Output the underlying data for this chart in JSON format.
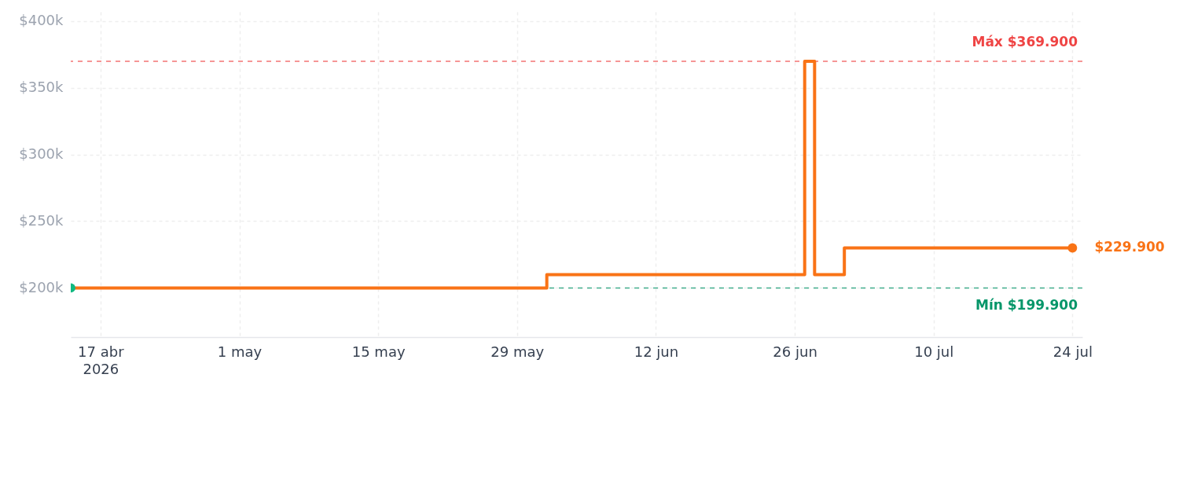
{
  "chart_data": {
    "type": "step",
    "x": [
      "2026-04-14",
      "2026-06-01",
      "2026-06-27",
      "2026-06-28",
      "2026-07-01",
      "2026-07-24"
    ],
    "series": [
      {
        "color": "#f97316",
        "values": [
          199900,
          209900,
          369900,
          209900,
          229900,
          229900
        ]
      },
      {
        "type": "scatter",
        "color": "#10b981",
        "x": [
          "2026-04-14"
        ],
        "values": [
          199900
        ],
        "marker": "circle"
      },
      {
        "type": "scatter",
        "color": "#f97316",
        "x": [
          "2026-07-24"
        ],
        "values": [
          229900
        ],
        "marker": "circle",
        "value_labels": [
          "$229.900"
        ]
      }
    ],
    "xlim": [
      "2026-04-14",
      "2026-07-25"
    ],
    "xticks": [
      {
        "value": "2026-04-17",
        "label": "17 abr\n2026"
      },
      {
        "value": "2026-05-01",
        "label": "1 may"
      },
      {
        "value": "2026-05-15",
        "label": "15 may"
      },
      {
        "value": "2026-05-29",
        "label": "29 may"
      },
      {
        "value": "2026-06-12",
        "label": "12 jun"
      },
      {
        "value": "2026-06-26",
        "label": "26 jun"
      },
      {
        "value": "2026-07-10",
        "label": "10 jul"
      },
      {
        "value": "2026-07-24",
        "label": "24 jul"
      }
    ],
    "ylim": [
      163000,
      407000
    ],
    "yticks": [
      {
        "value": 200000,
        "label": "$200k"
      },
      {
        "value": 250000,
        "label": "$250k"
      },
      {
        "value": 300000,
        "label": "$300k"
      },
      {
        "value": 350000,
        "label": "$350k"
      },
      {
        "value": 400000,
        "label": "$400k"
      }
    ],
    "ref_lines": [
      {
        "axis": "y",
        "value": 369900,
        "label": "Máx $369.900",
        "color": "#ef4444",
        "line_style": "dashed"
      },
      {
        "axis": "y",
        "value": 199900,
        "label": "Mín $199.900",
        "color": "#059669",
        "line_style": "dashed"
      }
    ],
    "grid": true
  }
}
